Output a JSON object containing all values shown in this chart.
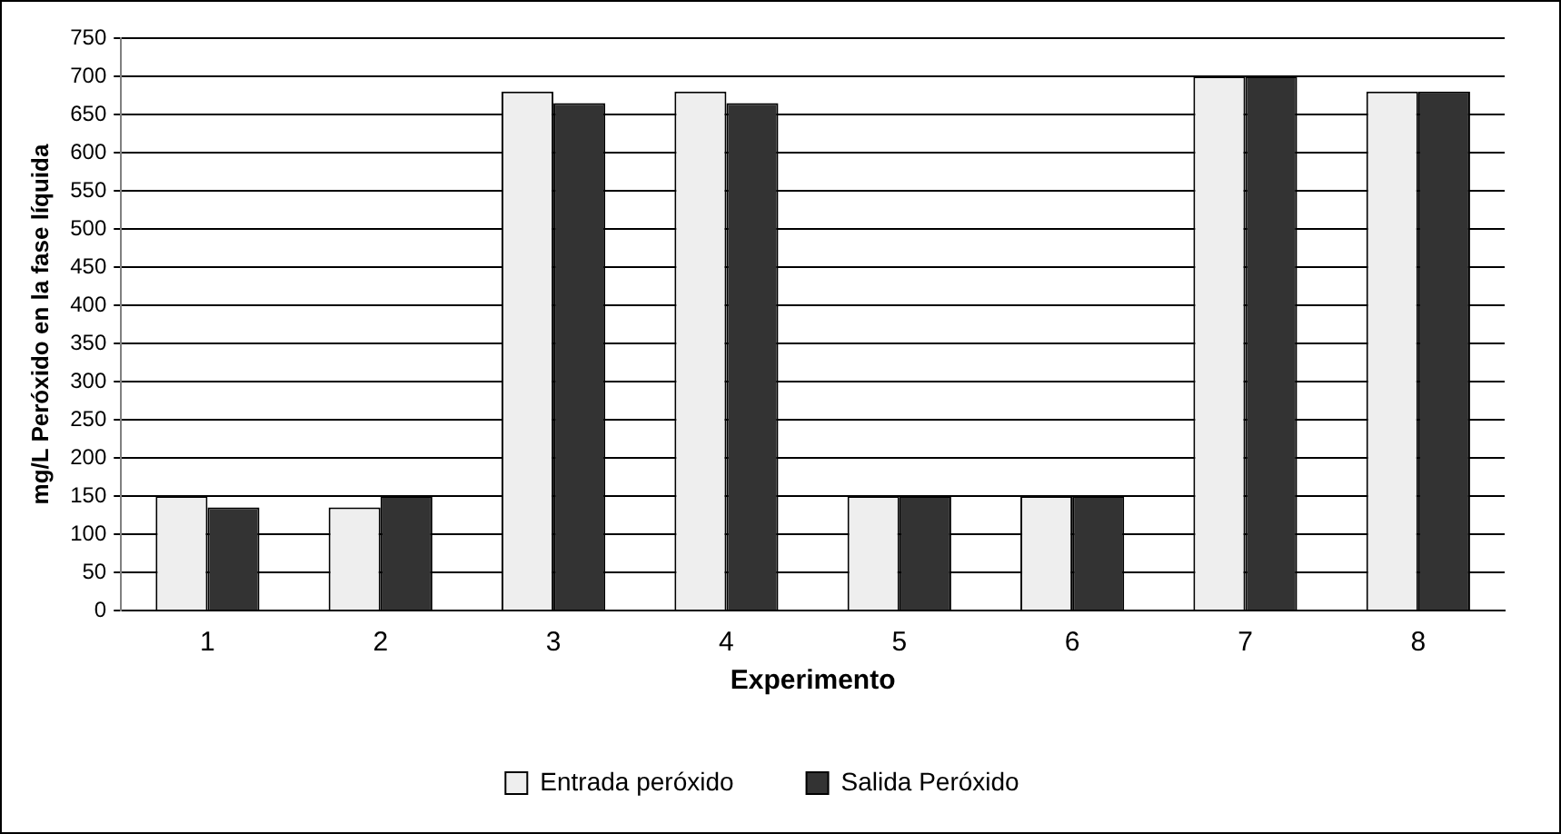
{
  "chart_data": {
    "type": "bar",
    "xlabel": "Experimento",
    "ylabel": "mg/L Peróxido en la fase líquida",
    "categories": [
      "1",
      "2",
      "3",
      "4",
      "5",
      "6",
      "7",
      "8"
    ],
    "series": [
      {
        "name": "Entrada peróxido",
        "color": "#eeeeee",
        "values": [
          150,
          135,
          680,
          680,
          150,
          150,
          700,
          680
        ]
      },
      {
        "name": "Salida Peróxido",
        "color": "#333333",
        "values": [
          135,
          150,
          665,
          665,
          150,
          150,
          700,
          680
        ]
      }
    ],
    "ylim": [
      0,
      750
    ],
    "yticks": [
      0,
      50,
      100,
      150,
      200,
      250,
      300,
      350,
      400,
      450,
      500,
      550,
      600,
      650,
      700,
      750
    ],
    "grid": "y",
    "legend": "bottom"
  }
}
